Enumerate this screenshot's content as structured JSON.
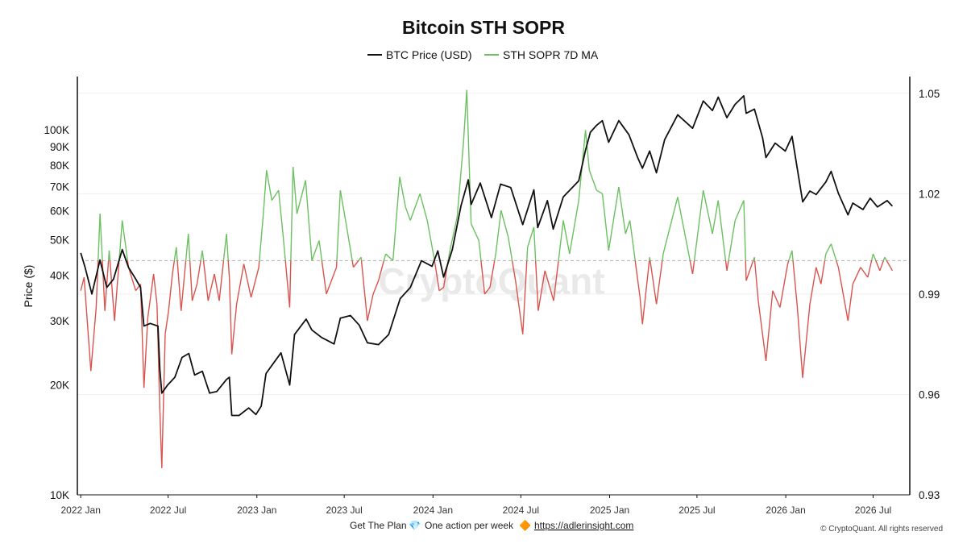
{
  "chart_data": {
    "type": "line",
    "title": "Bitcoin STH SOPR",
    "legend": {
      "position": "top-center",
      "items": [
        {
          "name": "BTC Price (USD)",
          "color": "#111111"
        },
        {
          "name": "STH SOPR 7D MA",
          "color": "#6cc062",
          "below_threshold_color": "#d9534f"
        }
      ]
    },
    "watermark": "CryptoQuant",
    "x_ticks": [
      "2022 Jan",
      "2022 Jul",
      "2023 Jan",
      "2023 Jul",
      "2024 Jan",
      "2024 Jul",
      "2025 Jan",
      "2025 Jul",
      "2026 Jan",
      "2026 Jul"
    ],
    "xlim": [
      "2021-12-25",
      "2026-09-15"
    ],
    "left_axis": {
      "label": "Price ($)",
      "scale": "log",
      "ylim": [
        10000,
        140000
      ],
      "ticks": [
        10000,
        20000,
        30000,
        40000,
        50000,
        60000,
        70000,
        80000,
        90000,
        100000
      ],
      "tick_labels": [
        "10K",
        "20K",
        "30K",
        "40K",
        "50K",
        "60K",
        "70K",
        "80K",
        "90K",
        "100K"
      ]
    },
    "right_axis": {
      "label": "",
      "scale": "linear",
      "ylim": [
        0.93,
        1.055
      ],
      "ticks": [
        0.93,
        0.96,
        0.99,
        1.02,
        1.05
      ],
      "tick_labels": [
        "0.93",
        "0.96",
        "0.99",
        "1.02",
        "1.05"
      ],
      "reference_line": 1.0
    },
    "grid": true,
    "series": [
      {
        "name": "BTC Price (USD)",
        "axis": "left",
        "points": [
          [
            "2022-01-01",
            46000
          ],
          [
            "2022-01-10",
            42000
          ],
          [
            "2022-01-24",
            35500
          ],
          [
            "2022-02-10",
            44000
          ],
          [
            "2022-02-24",
            37000
          ],
          [
            "2022-03-10",
            39000
          ],
          [
            "2022-03-28",
            47000
          ],
          [
            "2022-04-10",
            42000
          ],
          [
            "2022-04-25",
            39000
          ],
          [
            "2022-05-05",
            37000
          ],
          [
            "2022-05-12",
            29000
          ],
          [
            "2022-05-25",
            29500
          ],
          [
            "2022-06-10",
            29000
          ],
          [
            "2022-06-14",
            22000
          ],
          [
            "2022-06-18",
            19000
          ],
          [
            "2022-06-30",
            20000
          ],
          [
            "2022-07-15",
            21000
          ],
          [
            "2022-07-30",
            23800
          ],
          [
            "2022-08-13",
            24400
          ],
          [
            "2022-08-25",
            21300
          ],
          [
            "2022-09-10",
            21800
          ],
          [
            "2022-09-25",
            19000
          ],
          [
            "2022-10-10",
            19200
          ],
          [
            "2022-10-30",
            20700
          ],
          [
            "2022-11-05",
            21000
          ],
          [
            "2022-11-10",
            16500
          ],
          [
            "2022-11-25",
            16500
          ],
          [
            "2022-12-15",
            17300
          ],
          [
            "2022-12-30",
            16600
          ],
          [
            "2023-01-10",
            17500
          ],
          [
            "2023-01-20",
            21500
          ],
          [
            "2023-02-05",
            23000
          ],
          [
            "2023-02-20",
            24500
          ],
          [
            "2023-03-10",
            20000
          ],
          [
            "2023-03-20",
            27500
          ],
          [
            "2023-04-13",
            30300
          ],
          [
            "2023-04-25",
            28300
          ],
          [
            "2023-05-15",
            27000
          ],
          [
            "2023-06-10",
            25900
          ],
          [
            "2023-06-23",
            30500
          ],
          [
            "2023-07-14",
            31000
          ],
          [
            "2023-08-01",
            29200
          ],
          [
            "2023-08-18",
            26100
          ],
          [
            "2023-09-10",
            25800
          ],
          [
            "2023-10-01",
            27500
          ],
          [
            "2023-10-25",
            34500
          ],
          [
            "2023-11-15",
            37000
          ],
          [
            "2023-12-08",
            43800
          ],
          [
            "2023-12-30",
            42300
          ],
          [
            "2024-01-11",
            46600
          ],
          [
            "2024-01-23",
            39500
          ],
          [
            "2024-02-10",
            47000
          ],
          [
            "2024-02-28",
            62000
          ],
          [
            "2024-03-14",
            73000
          ],
          [
            "2024-03-20",
            62500
          ],
          [
            "2024-04-08",
            71500
          ],
          [
            "2024-05-01",
            57500
          ],
          [
            "2024-05-20",
            71000
          ],
          [
            "2024-06-10",
            69500
          ],
          [
            "2024-07-05",
            55000
          ],
          [
            "2024-07-28",
            68500
          ],
          [
            "2024-08-05",
            54000
          ],
          [
            "2024-08-25",
            64000
          ],
          [
            "2024-09-06",
            53500
          ],
          [
            "2024-09-27",
            65500
          ],
          [
            "2024-10-29",
            72500
          ],
          [
            "2024-11-12",
            88000
          ],
          [
            "2024-11-22",
            98500
          ],
          [
            "2024-12-05",
            103000
          ],
          [
            "2024-12-17",
            106000
          ],
          [
            "2024-12-30",
            92500
          ],
          [
            "2025-01-20",
            106000
          ],
          [
            "2025-02-10",
            97000
          ],
          [
            "2025-02-28",
            84000
          ],
          [
            "2025-03-10",
            78500
          ],
          [
            "2025-03-25",
            87500
          ],
          [
            "2025-04-08",
            76300
          ],
          [
            "2025-04-25",
            94000
          ],
          [
            "2025-05-22",
            110000
          ],
          [
            "2025-06-22",
            101000
          ],
          [
            "2025-07-14",
            120000
          ],
          [
            "2025-08-02",
            113000
          ],
          [
            "2025-08-14",
            123000
          ],
          [
            "2025-09-01",
            108000
          ],
          [
            "2025-09-18",
            117500
          ],
          [
            "2025-10-06",
            124000
          ],
          [
            "2025-10-11",
            111000
          ],
          [
            "2025-10-28",
            114000
          ],
          [
            "2025-11-14",
            95000
          ],
          [
            "2025-11-21",
            84000
          ],
          [
            "2025-12-10",
            92000
          ],
          [
            "2025-12-31",
            87500
          ],
          [
            "2026-01-14",
            96000
          ],
          [
            "2026-02-05",
            63500
          ],
          [
            "2026-02-20",
            68000
          ],
          [
            "2026-03-05",
            66500
          ],
          [
            "2026-03-25",
            72000
          ],
          [
            "2026-04-05",
            77000
          ],
          [
            "2026-04-20",
            67000
          ],
          [
            "2026-05-10",
            58500
          ],
          [
            "2026-05-20",
            63000
          ],
          [
            "2026-06-10",
            60500
          ],
          [
            "2026-06-25",
            65000
          ],
          [
            "2026-07-10",
            61500
          ],
          [
            "2026-07-30",
            64000
          ],
          [
            "2026-08-10",
            61800
          ]
        ]
      },
      {
        "name": "STH SOPR 7D MA",
        "axis": "right",
        "points": [
          [
            "2022-01-01",
            0.991
          ],
          [
            "2022-01-08",
            0.995
          ],
          [
            "2022-01-16",
            0.979
          ],
          [
            "2022-01-22",
            0.967
          ],
          [
            "2022-02-02",
            0.986
          ],
          [
            "2022-02-10",
            1.014
          ],
          [
            "2022-02-20",
            0.985
          ],
          [
            "2022-03-01",
            1.003
          ],
          [
            "2022-03-12",
            0.982
          ],
          [
            "2022-03-28",
            1.012
          ],
          [
            "2022-04-10",
            0.998
          ],
          [
            "2022-04-25",
            0.991
          ],
          [
            "2022-05-05",
            0.993
          ],
          [
            "2022-05-12",
            0.962
          ],
          [
            "2022-05-20",
            0.983
          ],
          [
            "2022-06-01",
            0.996
          ],
          [
            "2022-06-08",
            0.987
          ],
          [
            "2022-06-14",
            0.955
          ],
          [
            "2022-06-18",
            0.938
          ],
          [
            "2022-06-25",
            0.978
          ],
          [
            "2022-07-02",
            0.985
          ],
          [
            "2022-07-10",
            0.996
          ],
          [
            "2022-07-18",
            1.004
          ],
          [
            "2022-07-28",
            0.985
          ],
          [
            "2022-08-12",
            1.008
          ],
          [
            "2022-08-20",
            0.988
          ],
          [
            "2022-08-30",
            0.993
          ],
          [
            "2022-09-10",
            1.003
          ],
          [
            "2022-09-22",
            0.988
          ],
          [
            "2022-10-05",
            0.996
          ],
          [
            "2022-10-15",
            0.988
          ],
          [
            "2022-10-30",
            1.008
          ],
          [
            "2022-11-05",
            0.995
          ],
          [
            "2022-11-10",
            0.972
          ],
          [
            "2022-11-20",
            0.987
          ],
          [
            "2022-12-05",
            0.999
          ],
          [
            "2022-12-20",
            0.989
          ],
          [
            "2023-01-05",
            0.998
          ],
          [
            "2023-01-15",
            1.015
          ],
          [
            "2023-01-21",
            1.027
          ],
          [
            "2023-02-01",
            1.018
          ],
          [
            "2023-02-15",
            1.021
          ],
          [
            "2023-02-24",
            1.008
          ],
          [
            "2023-03-10",
            0.986
          ],
          [
            "2023-03-17",
            1.028
          ],
          [
            "2023-03-25",
            1.014
          ],
          [
            "2023-04-12",
            1.024
          ],
          [
            "2023-04-25",
            1.0
          ],
          [
            "2023-05-10",
            1.006
          ],
          [
            "2023-05-25",
            0.99
          ],
          [
            "2023-06-15",
            0.998
          ],
          [
            "2023-06-23",
            1.021
          ],
          [
            "2023-07-05",
            1.011
          ],
          [
            "2023-07-20",
            0.998
          ],
          [
            "2023-08-05",
            1.001
          ],
          [
            "2023-08-18",
            0.982
          ],
          [
            "2023-08-30",
            0.99
          ],
          [
            "2023-09-10",
            0.994
          ],
          [
            "2023-09-25",
            1.002
          ],
          [
            "2023-10-10",
            1.0
          ],
          [
            "2023-10-24",
            1.025
          ],
          [
            "2023-11-05",
            1.016
          ],
          [
            "2023-11-15",
            1.012
          ],
          [
            "2023-12-05",
            1.02
          ],
          [
            "2023-12-20",
            1.012
          ],
          [
            "2024-01-03",
            1.001
          ],
          [
            "2024-01-14",
            0.991
          ],
          [
            "2024-01-23",
            0.992
          ],
          [
            "2024-02-05",
            1.003
          ],
          [
            "2024-02-20",
            1.013
          ],
          [
            "2024-03-04",
            1.035
          ],
          [
            "2024-03-11",
            1.051
          ],
          [
            "2024-03-20",
            1.011
          ],
          [
            "2024-04-05",
            1.006
          ],
          [
            "2024-04-17",
            0.99
          ],
          [
            "2024-04-28",
            0.992
          ],
          [
            "2024-05-10",
            1.002
          ],
          [
            "2024-05-21",
            1.015
          ],
          [
            "2024-06-05",
            1.007
          ],
          [
            "2024-06-20",
            0.994
          ],
          [
            "2024-07-05",
            0.978
          ],
          [
            "2024-07-15",
            1.004
          ],
          [
            "2024-07-28",
            1.01
          ],
          [
            "2024-08-06",
            0.985
          ],
          [
            "2024-08-20",
            0.997
          ],
          [
            "2024-09-07",
            0.988
          ],
          [
            "2024-09-27",
            1.012
          ],
          [
            "2024-10-10",
            1.002
          ],
          [
            "2024-10-29",
            1.018
          ],
          [
            "2024-11-12",
            1.039
          ],
          [
            "2024-11-20",
            1.027
          ],
          [
            "2024-12-05",
            1.021
          ],
          [
            "2024-12-17",
            1.02
          ],
          [
            "2024-12-30",
            1.003
          ],
          [
            "2025-01-20",
            1.022
          ],
          [
            "2025-02-03",
            1.008
          ],
          [
            "2025-02-12",
            1.012
          ],
          [
            "2025-03-05",
            0.989
          ],
          [
            "2025-03-10",
            0.981
          ],
          [
            "2025-03-25",
            1.001
          ],
          [
            "2025-04-08",
            0.987
          ],
          [
            "2025-04-22",
            1.002
          ],
          [
            "2025-05-22",
            1.019
          ],
          [
            "2025-06-22",
            0.996
          ],
          [
            "2025-07-14",
            1.021
          ],
          [
            "2025-08-02",
            1.008
          ],
          [
            "2025-08-14",
            1.018
          ],
          [
            "2025-09-01",
            0.997
          ],
          [
            "2025-09-18",
            1.012
          ],
          [
            "2025-10-06",
            1.018
          ],
          [
            "2025-10-11",
            0.994
          ],
          [
            "2025-10-28",
            1.001
          ],
          [
            "2025-11-05",
            0.988
          ],
          [
            "2025-11-21",
            0.97
          ],
          [
            "2025-12-05",
            0.991
          ],
          [
            "2025-12-20",
            0.986
          ],
          [
            "2026-01-05",
            0.999
          ],
          [
            "2026-01-14",
            1.003
          ],
          [
            "2026-01-25",
            0.986
          ],
          [
            "2026-02-05",
            0.965
          ],
          [
            "2026-02-20",
            0.987
          ],
          [
            "2026-03-05",
            0.998
          ],
          [
            "2026-03-15",
            0.993
          ],
          [
            "2026-03-25",
            1.002
          ],
          [
            "2026-04-05",
            1.005
          ],
          [
            "2026-04-20",
            0.998
          ],
          [
            "2026-05-10",
            0.982
          ],
          [
            "2026-05-20",
            0.993
          ],
          [
            "2026-06-05",
            0.998
          ],
          [
            "2026-06-20",
            0.995
          ],
          [
            "2026-07-01",
            1.002
          ],
          [
            "2026-07-15",
            0.997
          ],
          [
            "2026-07-25",
            1.001
          ],
          [
            "2026-08-10",
            0.997
          ]
        ]
      }
    ]
  },
  "footer": {
    "plan_text": "Get The Plan",
    "plan_emoji": "💎",
    "weekly_text": "One action per week",
    "weekly_emoji": "🔶",
    "link_text": "https://adlerinsight.com",
    "copyright": "© CryptoQuant. All rights reserved"
  }
}
